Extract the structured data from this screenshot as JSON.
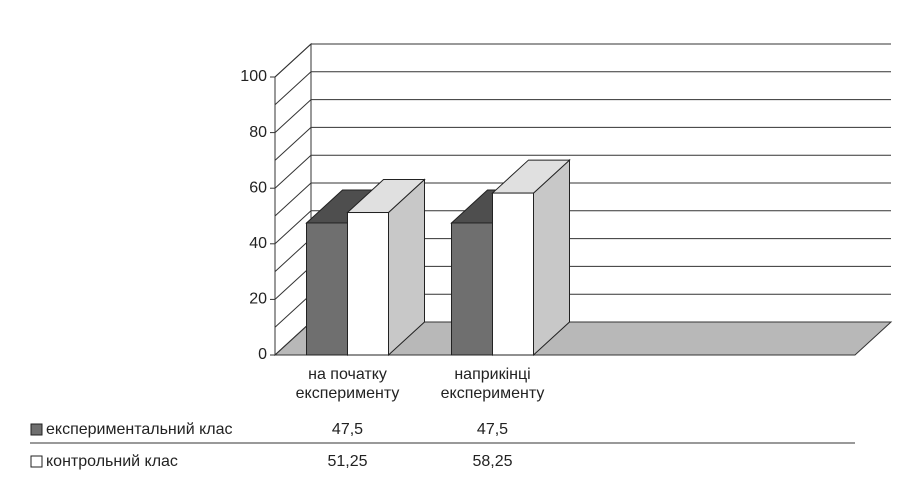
{
  "chart_data": {
    "type": "bar3d",
    "categories": [
      "на початку експерименту",
      "наприкінці експерименту"
    ],
    "series": [
      {
        "name": "експериментальний клас",
        "color": "#6f6f6f",
        "values": [
          47.5,
          47.5
        ],
        "value_labels": [
          "47,5",
          "47,5"
        ]
      },
      {
        "name": "контрольний клас",
        "color": "#ffffff",
        "values": [
          51.25,
          58.25
        ],
        "value_labels": [
          "51,25",
          "58,25"
        ]
      }
    ],
    "ylim": [
      0,
      100
    ],
    "yticks": [
      0,
      20,
      40,
      60,
      80,
      100
    ],
    "minor_yticks": [
      10,
      30,
      50,
      70,
      90
    ],
    "grid": true
  }
}
